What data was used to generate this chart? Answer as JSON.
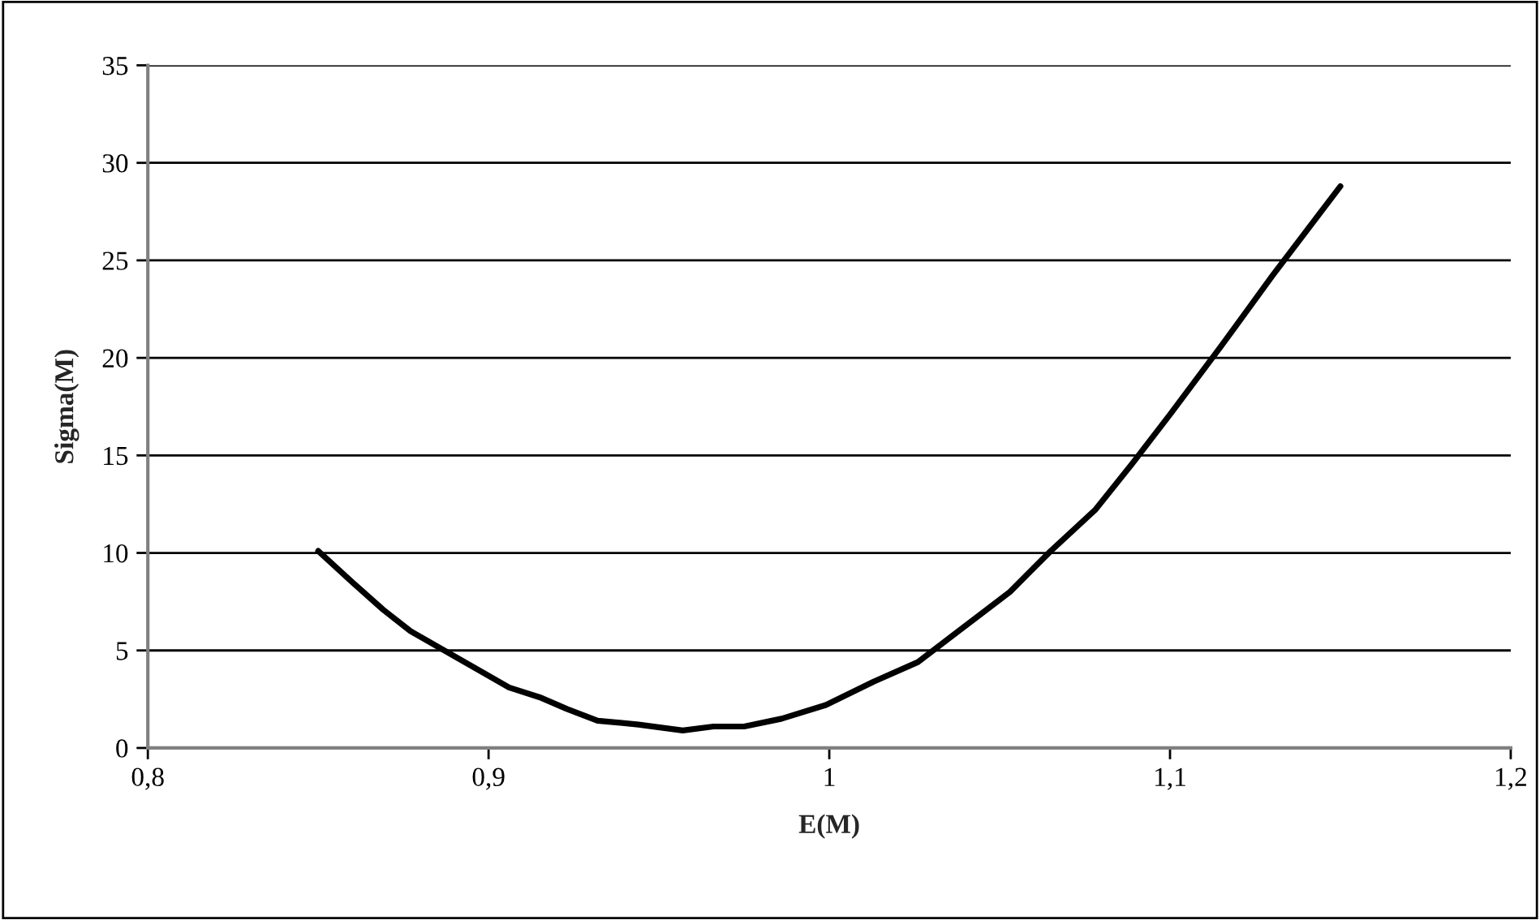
{
  "chart_data": {
    "type": "line",
    "xlabel": "E(M)",
    "ylabel": "Sigma(M)",
    "series": [
      {
        "color": "#000000",
        "x": [
          0.85,
          0.86,
          0.869,
          0.877,
          0.888,
          0.898,
          0.906,
          0.915,
          0.923,
          0.932,
          0.944,
          0.957,
          0.966,
          0.975,
          0.986,
          0.999,
          1.013,
          1.026,
          1.038,
          1.053,
          1.065,
          1.078,
          1.089,
          1.1,
          1.115,
          1.13,
          1.15
        ],
        "values": [
          10.1,
          8.5,
          7.1,
          6.0,
          4.9,
          3.9,
          3.1,
          2.6,
          2.0,
          1.4,
          1.2,
          0.9,
          1.1,
          1.1,
          1.5,
          2.2,
          3.4,
          4.4,
          6.0,
          8.0,
          10.1,
          12.2,
          14.6,
          17.1,
          20.6,
          24.2,
          28.8
        ]
      }
    ],
    "xlim": [
      0.8,
      1.2
    ],
    "xticks": [
      {
        "value": 0.8,
        "label": "0,8"
      },
      {
        "value": 0.9,
        "label": "0,9"
      },
      {
        "value": 1,
        "label": "1"
      },
      {
        "value": 1.1,
        "label": "1,1"
      },
      {
        "value": 1.2,
        "label": "1,2"
      }
    ],
    "ylim": [
      0,
      35
    ],
    "yticks": [
      0,
      5,
      10,
      15,
      20,
      25,
      30,
      35
    ],
    "grid": "y",
    "marker": "none",
    "line_style": "solid"
  }
}
